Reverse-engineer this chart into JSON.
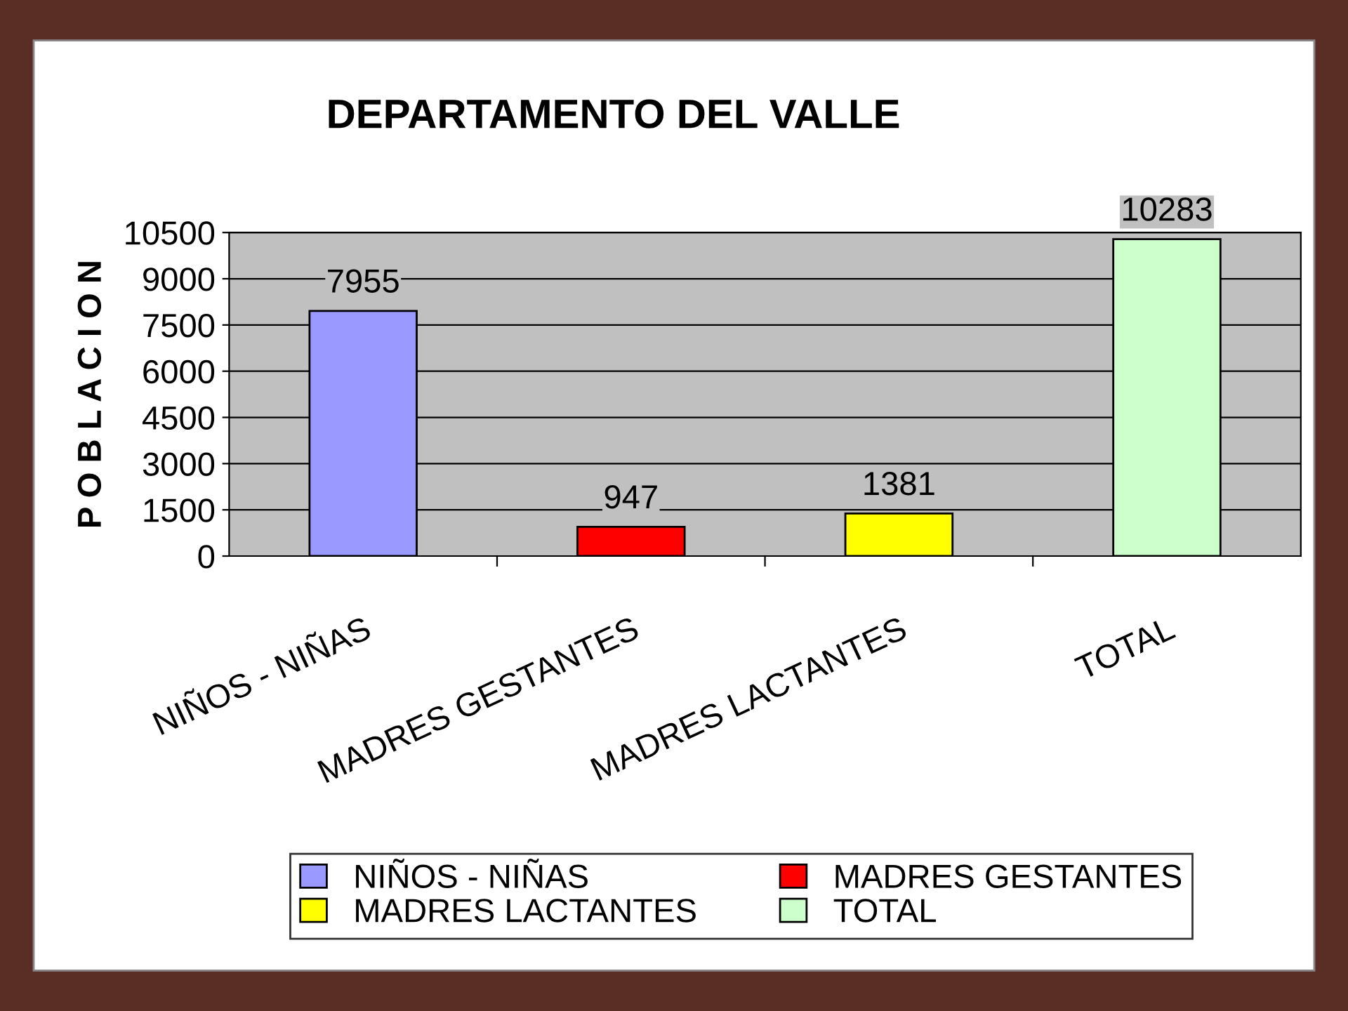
{
  "chart_data": {
    "type": "bar",
    "title": "DEPARTAMENTO DEL VALLE",
    "ylabel": "P O B L A C I O N",
    "categories": [
      "NIÑOS - NIÑAS",
      "MADRES GESTANTES",
      "MADRES LACTANTES",
      "TOTAL"
    ],
    "stacked": true,
    "series": [
      {
        "name": "NIÑOS - NIÑAS",
        "color": "#9999ff",
        "values": [
          7955,
          null,
          null,
          null
        ]
      },
      {
        "name": "MADRES GESTANTES",
        "color": "#ff0000",
        "values": [
          null,
          947,
          null,
          null
        ]
      },
      {
        "name": "MADRES LACTANTES",
        "color": "#ffff00",
        "values": [
          null,
          null,
          1381,
          null
        ]
      },
      {
        "name": "TOTAL",
        "color": "#ccffcc",
        "values": [
          null,
          null,
          null,
          10283
        ]
      }
    ],
    "ylim": [
      0,
      10500
    ],
    "yticks": [
      0,
      1500,
      3000,
      4500,
      6000,
      7500,
      9000,
      10500
    ],
    "grid": "y",
    "data_labels": true,
    "legend": "bottom"
  }
}
